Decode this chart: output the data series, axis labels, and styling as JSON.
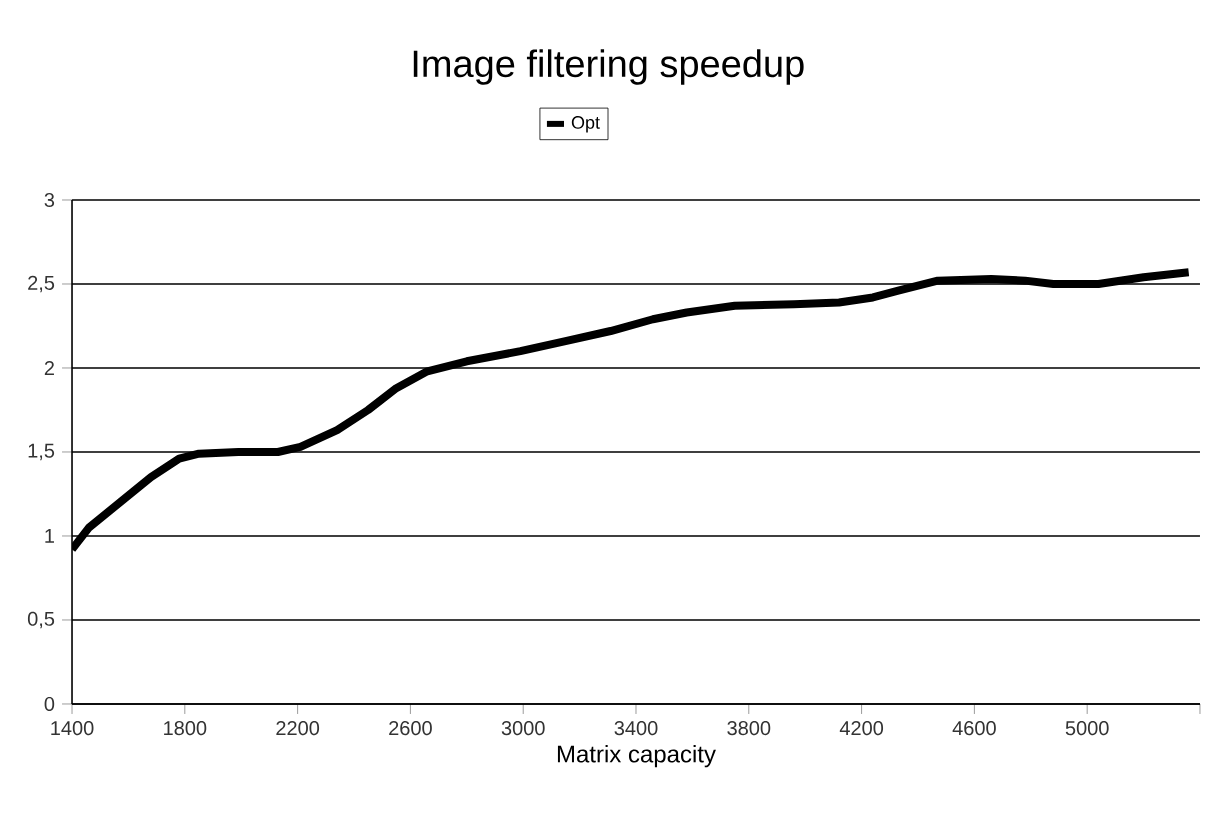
{
  "chart_data": {
    "type": "line",
    "title": "Image filtering speedup",
    "xlabel": "Matrix capacity",
    "xlim": [
      1400,
      5400
    ],
    "xticks": [
      1400,
      1800,
      2200,
      2600,
      3000,
      3400,
      3800,
      4200,
      4600,
      5000,
      {
        "value": 5400,
        "label": null
      }
    ],
    "ylim": [
      0,
      3
    ],
    "yticks": [
      0,
      {
        "value": 0.5,
        "label": "0,5"
      },
      1,
      {
        "value": 1.5,
        "label": "1,5"
      },
      2,
      {
        "value": 2.5,
        "label": "2,5"
      },
      3
    ],
    "grid": "y",
    "legend": "top",
    "marker": "none",
    "line_style": "solid",
    "series": [
      {
        "name": "Opt",
        "color": "#000000",
        "x": [
          1400,
          1460,
          1570,
          1680,
          1780,
          1850,
          1990,
          2130,
          2210,
          2340,
          2450,
          2550,
          2660,
          2800,
          2990,
          3150,
          3310,
          3460,
          3580,
          3750,
          3960,
          4120,
          4240,
          4330,
          4470,
          4660,
          4780,
          4880,
          5040,
          5200,
          5360
        ],
        "values": [
          0.92,
          1.05,
          1.2,
          1.35,
          1.46,
          1.49,
          1.5,
          1.5,
          1.53,
          1.63,
          1.75,
          1.88,
          1.98,
          2.04,
          2.1,
          2.16,
          2.22,
          2.29,
          2.33,
          2.37,
          2.38,
          2.39,
          2.42,
          2.46,
          2.52,
          2.53,
          2.52,
          2.5,
          2.5,
          2.54,
          2.57
        ]
      }
    ]
  }
}
